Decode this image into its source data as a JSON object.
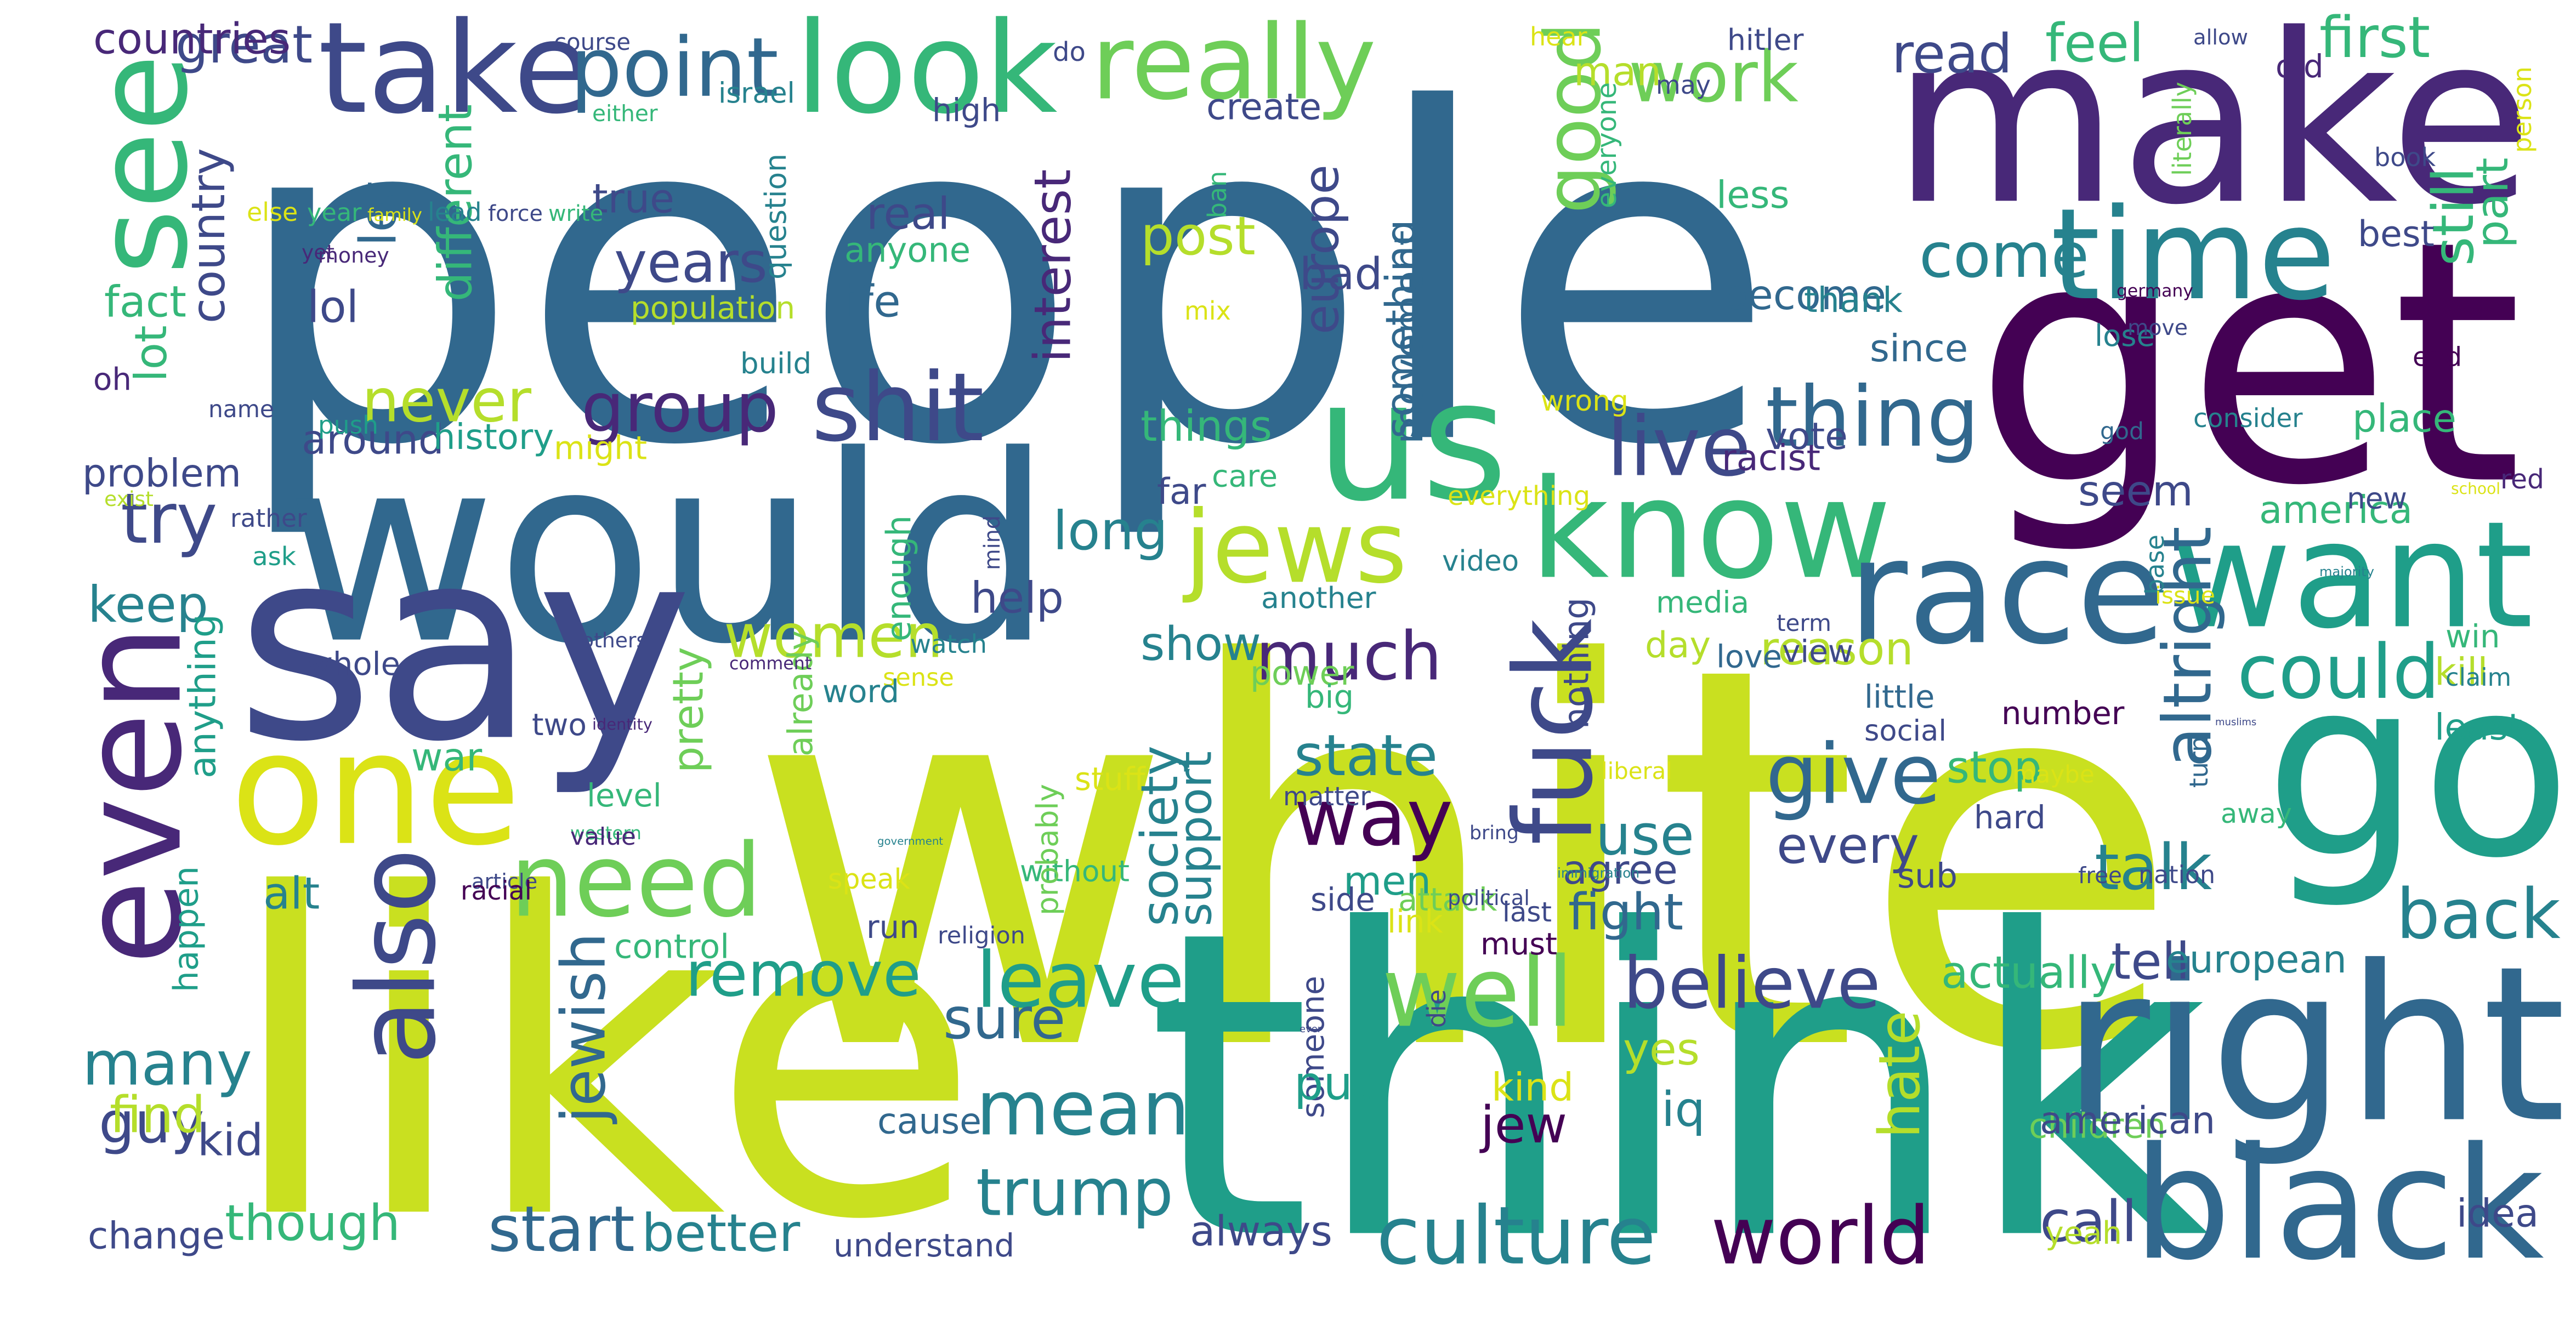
{
  "palette": {
    "background": "#ffffff",
    "colors": [
      "#440154",
      "#482878",
      "#3e4989",
      "#31688e",
      "#26828e",
      "#1f9e89",
      "#35b779",
      "#6ece58",
      "#b5de2b",
      "#dbe316"
    ]
  },
  "words": [
    {
      "text": "white",
      "color": "#c9e020"
    },
    {
      "text": "people",
      "color": "#31688e"
    },
    {
      "text": "think",
      "color": "#1f9e89"
    },
    {
      "text": "like",
      "color": "#c9e020"
    },
    {
      "text": "get",
      "color": "#440154"
    },
    {
      "text": "would",
      "color": "#31688e"
    },
    {
      "text": "make",
      "color": "#482878"
    },
    {
      "text": "say",
      "color": "#3e4989"
    },
    {
      "text": "go",
      "color": "#1f9e89"
    },
    {
      "text": "right",
      "color": "#31688e"
    },
    {
      "text": "know",
      "color": "#35b779"
    },
    {
      "text": "want",
      "color": "#1f9e89"
    },
    {
      "text": "one",
      "color": "#dbe316"
    },
    {
      "text": "even",
      "color": "#482878"
    },
    {
      "text": "black",
      "color": "#31688e"
    },
    {
      "text": "us",
      "color": "#35b779"
    },
    {
      "text": "see",
      "color": "#35b779"
    },
    {
      "text": "also",
      "color": "#3e4989"
    },
    {
      "text": "race",
      "color": "#31688e"
    },
    {
      "text": "look",
      "color": "#35b779"
    },
    {
      "text": "take",
      "color": "#3e4989"
    },
    {
      "text": "need",
      "color": "#6ece58"
    },
    {
      "text": "time",
      "color": "#26828e"
    },
    {
      "text": "really",
      "color": "#6ece58"
    },
    {
      "text": "jews",
      "color": "#b5de2b"
    },
    {
      "text": "fuck",
      "color": "#3e4989"
    },
    {
      "text": "good",
      "color": "#6ece58"
    },
    {
      "text": "mean",
      "color": "#26828e"
    },
    {
      "text": "culture",
      "color": "#26828e"
    },
    {
      "text": "world",
      "color": "#440154"
    },
    {
      "text": "much",
      "color": "#482878"
    },
    {
      "text": "way",
      "color": "#440154"
    },
    {
      "text": "come",
      "color": "#26828e"
    },
    {
      "text": "could",
      "color": "#1f9e89"
    },
    {
      "text": "well",
      "color": "#6ece58"
    },
    {
      "text": "thing",
      "color": "#31688e"
    },
    {
      "text": "believe",
      "color": "#3e4989"
    },
    {
      "text": "point",
      "color": "#31688e"
    },
    {
      "text": "shit",
      "color": "#3e4989"
    },
    {
      "text": "back",
      "color": "#26828e"
    },
    {
      "text": "work",
      "color": "#6ece58"
    },
    {
      "text": "trump",
      "color": "#26828e"
    },
    {
      "text": "many",
      "color": "#26828e"
    },
    {
      "text": "remove",
      "color": "#1f9e89"
    },
    {
      "text": "give",
      "color": "#31688e"
    },
    {
      "text": "women",
      "color": "#b5de2b"
    },
    {
      "text": "group",
      "color": "#482878"
    },
    {
      "text": "leave",
      "color": "#1f9e89"
    },
    {
      "text": "jewish",
      "color": "#31688e"
    },
    {
      "text": "altright",
      "color": "#31688e"
    },
    {
      "text": "use",
      "color": "#26828e"
    },
    {
      "text": "live",
      "color": "#3e4989"
    },
    {
      "text": "never",
      "color": "#b5de2b"
    },
    {
      "text": "still",
      "color": "#35b779"
    },
    {
      "text": "actually",
      "color": "#35b779"
    },
    {
      "text": "understand",
      "color": "#3e4989"
    },
    {
      "text": "better",
      "color": "#26828e"
    },
    {
      "text": "start",
      "color": "#31688e"
    },
    {
      "text": "though",
      "color": "#35b779"
    },
    {
      "text": "always",
      "color": "#3e4989"
    },
    {
      "text": "try",
      "color": "#3e4989"
    },
    {
      "text": "great",
      "color": "#3e4989"
    },
    {
      "text": "post",
      "color": "#b5de2b"
    },
    {
      "text": "things",
      "color": "#35b779"
    },
    {
      "text": "show",
      "color": "#26828e"
    },
    {
      "text": "state",
      "color": "#26828e"
    },
    {
      "text": "talk",
      "color": "#26828e"
    },
    {
      "text": "become",
      "color": "#31688e"
    },
    {
      "text": "seem",
      "color": "#3e4989"
    },
    {
      "text": "read",
      "color": "#3e4989"
    },
    {
      "text": "feel",
      "color": "#35b779"
    },
    {
      "text": "first",
      "color": "#35b779"
    },
    {
      "text": "reason",
      "color": "#b5de2b"
    },
    {
      "text": "america",
      "color": "#35b779"
    },
    {
      "text": "long",
      "color": "#26828e"
    },
    {
      "text": "interest",
      "color": "#482878"
    },
    {
      "text": "something",
      "color": "#31688e"
    },
    {
      "text": "movement",
      "color": "#31688e"
    },
    {
      "text": "every",
      "color": "#3e4989"
    },
    {
      "text": "men",
      "color": "#1f9e89"
    },
    {
      "text": "agree",
      "color": "#3e4989"
    },
    {
      "text": "tell",
      "color": "#3e4989"
    },
    {
      "text": "european",
      "color": "#26828e"
    },
    {
      "text": "jew",
      "color": "#440154"
    },
    {
      "text": "iq",
      "color": "#26828e"
    },
    {
      "text": "yes",
      "color": "#b5de2b"
    },
    {
      "text": "hate",
      "color": "#b5de2b"
    },
    {
      "text": "call",
      "color": "#3e4989"
    },
    {
      "text": "guy",
      "color": "#3e4989"
    },
    {
      "text": "sure",
      "color": "#31688e"
    },
    {
      "text": "keep",
      "color": "#26828e"
    },
    {
      "text": "someone",
      "color": "#3e4989"
    },
    {
      "text": "society",
      "color": "#26828e"
    },
    {
      "text": "support",
      "color": "#26828e"
    },
    {
      "text": "country",
      "color": "#3e4989"
    },
    {
      "text": "years",
      "color": "#3e4989"
    },
    {
      "text": "different",
      "color": "#35b779"
    },
    {
      "text": "let",
      "color": "#31688e"
    },
    {
      "text": "europe",
      "color": "#3e4989"
    },
    {
      "text": "problem",
      "color": "#3e4989"
    },
    {
      "text": "around",
      "color": "#3e4989"
    },
    {
      "text": "lot",
      "color": "#35b779"
    },
    {
      "text": "find",
      "color": "#b5de2b"
    },
    {
      "text": "change",
      "color": "#3e4989"
    },
    {
      "text": "war",
      "color": "#35b779"
    },
    {
      "text": "alt",
      "color": "#26828e"
    },
    {
      "text": "happen",
      "color": "#1f9e89"
    },
    {
      "text": "anything",
      "color": "#1f9e89"
    },
    {
      "text": "pretty",
      "color": "#6ece58"
    },
    {
      "text": "fight",
      "color": "#31688e"
    },
    {
      "text": "stop",
      "color": "#35b779"
    },
    {
      "text": "put",
      "color": "#1f9e89"
    },
    {
      "text": "children",
      "color": "#6ece58"
    },
    {
      "text": "american",
      "color": "#3e4989"
    },
    {
      "text": "man",
      "color": "#b5de2b"
    },
    {
      "text": "true",
      "color": "#3e4989"
    },
    {
      "text": "real",
      "color": "#3e4989"
    },
    {
      "text": "anyone",
      "color": "#35b779"
    },
    {
      "text": "life",
      "color": "#31688e"
    },
    {
      "text": "question",
      "color": "#26828e"
    },
    {
      "text": "nothing",
      "color": "#3e4989"
    },
    {
      "text": "media",
      "color": "#35b779"
    },
    {
      "text": "love",
      "color": "#31688e"
    },
    {
      "text": "view",
      "color": "#3e4989"
    },
    {
      "text": "help",
      "color": "#3e4989"
    },
    {
      "text": "without",
      "color": "#35b779"
    },
    {
      "text": "cause",
      "color": "#31688e"
    },
    {
      "text": "kid",
      "color": "#3e4989"
    },
    {
      "text": "fact",
      "color": "#35b779"
    },
    {
      "text": "lol",
      "color": "#3e4989"
    },
    {
      "text": "countries",
      "color": "#482878"
    },
    {
      "text": "history",
      "color": "#1f9e89"
    },
    {
      "text": "might",
      "color": "#dbe316"
    },
    {
      "text": "care",
      "color": "#35b779"
    },
    {
      "text": "far",
      "color": "#3e4989"
    },
    {
      "text": "bad",
      "color": "#3e4989"
    },
    {
      "text": "ever",
      "color": "#3e4989"
    },
    {
      "text": "create",
      "color": "#3e4989"
    },
    {
      "text": "israel",
      "color": "#26828e"
    },
    {
      "text": "since",
      "color": "#31688e"
    },
    {
      "text": "thank",
      "color": "#26828e"
    },
    {
      "text": "vote",
      "color": "#3e4989"
    },
    {
      "text": "consider",
      "color": "#26828e"
    },
    {
      "text": "place",
      "color": "#35b779"
    },
    {
      "text": "new",
      "color": "#3e4989"
    },
    {
      "text": "part",
      "color": "#35b779"
    },
    {
      "text": "end",
      "color": "#440154"
    },
    {
      "text": "best",
      "color": "#3e4989"
    },
    {
      "text": "racist",
      "color": "#482878"
    },
    {
      "text": "wrong",
      "color": "#dbe316"
    },
    {
      "text": "everyone",
      "color": "#35b779"
    },
    {
      "text": "less",
      "color": "#35b779"
    },
    {
      "text": "day",
      "color": "#b5de2b"
    },
    {
      "text": "maybe",
      "color": "#dbe316"
    },
    {
      "text": "matter",
      "color": "#3e4989"
    },
    {
      "text": "kind",
      "color": "#dbe316"
    },
    {
      "text": "control",
      "color": "#35b779"
    },
    {
      "text": "enough",
      "color": "#35b779"
    },
    {
      "text": "already",
      "color": "#6ece58"
    },
    {
      "text": "probably",
      "color": "#6ece58"
    },
    {
      "text": "another",
      "color": "#26828e"
    },
    {
      "text": "power",
      "color": "#6ece58"
    },
    {
      "text": "sub",
      "color": "#3e4989"
    },
    {
      "text": "yeah",
      "color": "#b5de2b"
    },
    {
      "text": "idea",
      "color": "#3e4989"
    },
    {
      "text": "kill",
      "color": "#b5de2b"
    },
    {
      "text": "least",
      "color": "#1f9e89"
    },
    {
      "text": "hear",
      "color": "#dbe316"
    },
    {
      "text": "hitler",
      "color": "#3e4989"
    },
    {
      "text": "allow",
      "color": "#3e4989"
    },
    {
      "text": "old",
      "color": "#482878"
    },
    {
      "text": "may",
      "color": "#3e4989"
    },
    {
      "text": "book",
      "color": "#3e4989"
    },
    {
      "text": "literally",
      "color": "#6ece58"
    },
    {
      "text": "person",
      "color": "#dbe316"
    },
    {
      "text": "course",
      "color": "#3e4989"
    },
    {
      "text": "do",
      "color": "#3e4989"
    },
    {
      "text": "either",
      "color": "#35b779"
    },
    {
      "text": "high",
      "color": "#3e4989"
    },
    {
      "text": "ban",
      "color": "#35b779"
    },
    {
      "text": "money",
      "color": "#482878"
    },
    {
      "text": "yet",
      "color": "#482878"
    },
    {
      "text": "population",
      "color": "#b5de2b"
    },
    {
      "text": "mix",
      "color": "#dbe316"
    },
    {
      "text": "germany",
      "color": "#440154"
    },
    {
      "text": "lose",
      "color": "#26828e"
    },
    {
      "text": "move",
      "color": "#3e4989"
    },
    {
      "text": "build",
      "color": "#26828e"
    },
    {
      "text": "oh",
      "color": "#482878"
    },
    {
      "text": "name",
      "color": "#3e4989"
    },
    {
      "text": "push",
      "color": "#1f9e89"
    },
    {
      "text": "exist",
      "color": "#b5de2b"
    },
    {
      "text": "rather",
      "color": "#3e4989"
    },
    {
      "text": "ask",
      "color": "#1f9e89"
    },
    {
      "text": "mind",
      "color": "#3e4989"
    },
    {
      "text": "everything",
      "color": "#dbe316"
    },
    {
      "text": "video",
      "color": "#26828e"
    },
    {
      "text": "god",
      "color": "#31688e"
    },
    {
      "text": "red",
      "color": "#482878"
    },
    {
      "text": "majority",
      "color": "#26828e"
    },
    {
      "text": "base",
      "color": "#26828e"
    },
    {
      "text": "issue",
      "color": "#dbe316"
    },
    {
      "text": "term",
      "color": "#3e4989"
    },
    {
      "text": "win",
      "color": "#35b779"
    },
    {
      "text": "others",
      "color": "#3e4989"
    },
    {
      "text": "whole",
      "color": "#3e4989"
    },
    {
      "text": "comment",
      "color": "#482878"
    },
    {
      "text": "sense",
      "color": "#dbe316"
    },
    {
      "text": "word",
      "color": "#26828e"
    },
    {
      "text": "two",
      "color": "#3e4989"
    },
    {
      "text": "big",
      "color": "#35b779"
    },
    {
      "text": "little",
      "color": "#31688e"
    },
    {
      "text": "social",
      "color": "#3e4989"
    },
    {
      "text": "watch",
      "color": "#26828e"
    },
    {
      "text": "western",
      "color": "#35b779"
    },
    {
      "text": "number",
      "color": "#440154"
    },
    {
      "text": "hard",
      "color": "#3e4989"
    },
    {
      "text": "value",
      "color": "#482878"
    },
    {
      "text": "stuff",
      "color": "#dbe316"
    },
    {
      "text": "article",
      "color": "#3e4989"
    },
    {
      "text": "free",
      "color": "#3e4989"
    },
    {
      "text": "racial",
      "color": "#440154"
    },
    {
      "text": "muslims",
      "color": "#3e4989"
    },
    {
      "text": "away",
      "color": "#35b779"
    },
    {
      "text": "liberal",
      "color": "#dbe316"
    },
    {
      "text": "level",
      "color": "#35b779"
    },
    {
      "text": "school",
      "color": "#dbe316"
    },
    {
      "text": "claim",
      "color": "#26828e"
    },
    {
      "text": "identity",
      "color": "#482878"
    },
    {
      "text": "bring",
      "color": "#3e4989"
    },
    {
      "text": "attack",
      "color": "#6ece58"
    },
    {
      "text": "immigration",
      "color": "#26828e"
    },
    {
      "text": "nation",
      "color": "#3e4989"
    },
    {
      "text": "speak",
      "color": "#dbe316"
    },
    {
      "text": "political",
      "color": "#3e4989"
    },
    {
      "text": "side",
      "color": "#3e4989"
    },
    {
      "text": "last",
      "color": "#3e4989"
    },
    {
      "text": "run",
      "color": "#3e4989"
    },
    {
      "text": "turn",
      "color": "#31688e"
    },
    {
      "text": "religion",
      "color": "#3e4989"
    },
    {
      "text": "link",
      "color": "#dbe316"
    },
    {
      "text": "must",
      "color": "#440154"
    },
    {
      "text": "die",
      "color": "#3e4989"
    },
    {
      "text": "government",
      "color": "#26828e"
    },
    {
      "text": "else",
      "color": "#dbe316"
    },
    {
      "text": "year",
      "color": "#35b779"
    },
    {
      "text": "family",
      "color": "#dbe316"
    },
    {
      "text": "lead",
      "color": "#26828e"
    },
    {
      "text": "force",
      "color": "#3e4989"
    },
    {
      "text": "write",
      "color": "#35b779"
    }
  ]
}
